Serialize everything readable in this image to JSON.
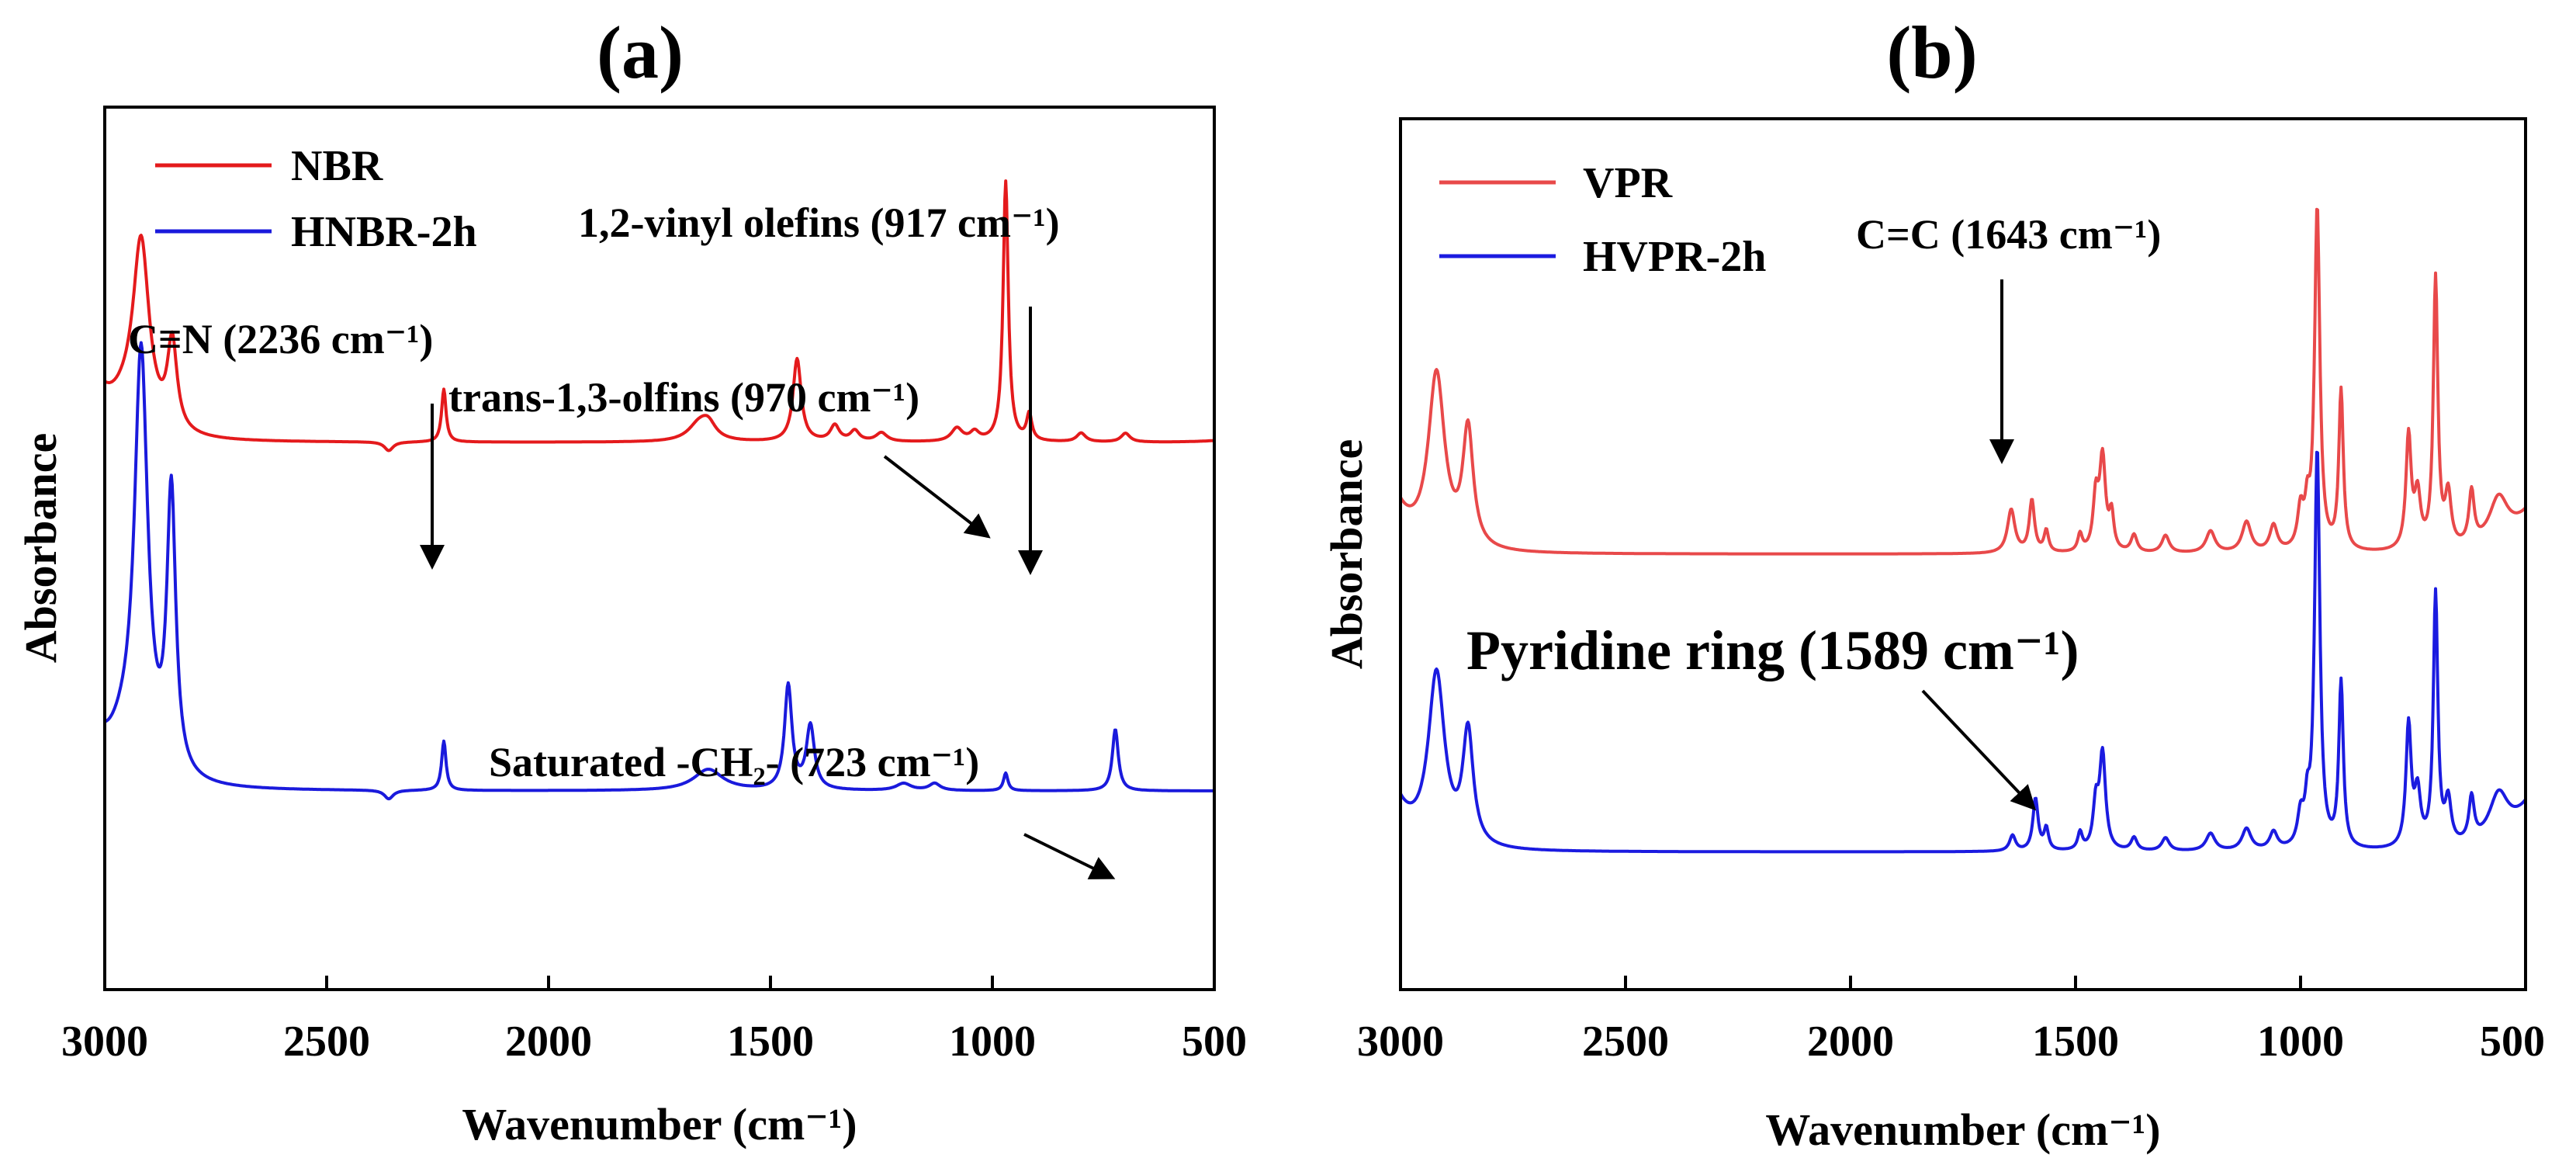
{
  "chart_data": [
    {
      "panel": "(a)",
      "type": "line",
      "title": "(a)",
      "xlabel": "Wavenumber (cm⁻¹)",
      "ylabel": "Absorbance",
      "xlim": [
        3000,
        500
      ],
      "ylim": [
        0,
        1
      ],
      "xticks": [
        "3000",
        "2500",
        "2000",
        "1500",
        "1000",
        "500"
      ],
      "legend_position": "top-left",
      "series": [
        {
          "name": "NBR",
          "color": "#e41a1c",
          "baseline": 0.62,
          "lead": 0.66,
          "tail": 0.622,
          "peaks": [
            [
              2950,
              0.03,
              50
            ],
            [
              2918,
              0.205,
              22
            ],
            [
              2848,
              0.1,
              13
            ],
            [
              2360,
              -0.01,
              12
            ],
            [
              2236,
              0.06,
              6
            ],
            [
              1660,
              0.02,
              30
            ],
            [
              1640,
              0.015,
              20
            ],
            [
              1440,
              0.094,
              11
            ],
            [
              1355,
              0.018,
              12
            ],
            [
              1310,
              0.012,
              12
            ],
            [
              1250,
              0.01,
              15
            ],
            [
              1080,
              0.015,
              15
            ],
            [
              1040,
              0.01,
              12
            ],
            [
              970,
              0.295,
              7
            ],
            [
              917,
              0.03,
              7
            ],
            [
              800,
              0.01,
              12
            ],
            [
              700,
              0.01,
              12
            ]
          ]
        },
        {
          "name": "HNBR-2h",
          "color": "#1a1adc",
          "baseline": 0.225,
          "lead": 0.26,
          "tail": 0.225,
          "peaks": [
            [
              2955,
              0.04,
              45
            ],
            [
              2918,
              0.47,
              18
            ],
            [
              2850,
              0.32,
              12
            ],
            [
              2360,
              -0.01,
              12
            ],
            [
              2236,
              0.056,
              6
            ],
            [
              1640,
              0.024,
              40
            ],
            [
              1460,
              0.118,
              10
            ],
            [
              1410,
              0.072,
              11
            ],
            [
              1200,
              0.008,
              20
            ],
            [
              1130,
              0.008,
              15
            ],
            [
              970,
              0.02,
              6
            ],
            [
              723,
              0.07,
              8
            ]
          ]
        }
      ],
      "annotations": [
        {
          "text": "C≡N (2236 cm⁻¹)",
          "target": 2236
        },
        {
          "text": "trans-1,3-olfins (970 cm⁻¹)",
          "target": 970
        },
        {
          "text": "1,2-vinyl olefins (917 cm⁻¹)",
          "target": 917
        },
        {
          "text": "Saturated -CH₂- (723 cm⁻¹)",
          "target": 723
        }
      ]
    },
    {
      "panel": "(b)",
      "type": "line",
      "title": "(b)",
      "xlabel": "Wavenumber (cm⁻¹)",
      "ylabel": "Absorbance",
      "xlim": [
        3000,
        500
      ],
      "ylim": [
        0,
        1
      ],
      "xticks": [
        "3000",
        "2500",
        "2000",
        "1500",
        "1000",
        "500"
      ],
      "legend_position": "top-left",
      "series": [
        {
          "name": "VPR",
          "color": "#e8494a",
          "baseline": 0.5,
          "lead": 0.55,
          "tail": 0.545,
          "peaks": [
            [
              2920,
              0.2,
              22
            ],
            [
              2850,
              0.135,
              14
            ],
            [
              1643,
              0.05,
              10
            ],
            [
              1597,
              0.06,
              7
            ],
            [
              1565,
              0.025,
              6
            ],
            [
              1490,
              0.02,
              6
            ],
            [
              1455,
              0.06,
              7
            ],
            [
              1440,
              0.106,
              8
            ],
            [
              1420,
              0.04,
              6
            ],
            [
              1370,
              0.02,
              8
            ],
            [
              1300,
              0.02,
              10
            ],
            [
              1200,
              0.025,
              12
            ],
            [
              1120,
              0.035,
              12
            ],
            [
              1060,
              0.03,
              10
            ],
            [
              1000,
              0.045,
              8
            ],
            [
              985,
              0.04,
              6
            ],
            [
              963,
              0.395,
              7
            ],
            [
              910,
              0.183,
              6
            ],
            [
              760,
              0.13,
              7
            ],
            [
              740,
              0.06,
              8
            ],
            [
              700,
              0.31,
              6
            ],
            [
              672,
              0.06,
              8
            ],
            [
              620,
              0.06,
              7
            ],
            [
              560,
              0.05,
              25
            ]
          ]
        },
        {
          "name": "HVPR-2h",
          "color": "#1b1be0",
          "baseline": 0.158,
          "lead": 0.21,
          "tail": 0.21,
          "peaks": [
            [
              2920,
              0.198,
              22
            ],
            [
              2850,
              0.13,
              14
            ],
            [
              1640,
              0.018,
              8
            ],
            [
              1589,
              0.06,
              7
            ],
            [
              1565,
              0.025,
              6
            ],
            [
              1490,
              0.02,
              6
            ],
            [
              1455,
              0.05,
              7
            ],
            [
              1440,
              0.11,
              8
            ],
            [
              1370,
              0.015,
              8
            ],
            [
              1300,
              0.015,
              10
            ],
            [
              1200,
              0.02,
              12
            ],
            [
              1120,
              0.025,
              12
            ],
            [
              1060,
              0.02,
              10
            ],
            [
              1000,
              0.035,
              8
            ],
            [
              985,
              0.04,
              6
            ],
            [
              963,
              0.46,
              7
            ],
            [
              910,
              0.19,
              6
            ],
            [
              760,
              0.14,
              7
            ],
            [
              740,
              0.06,
              8
            ],
            [
              700,
              0.29,
              6
            ],
            [
              672,
              0.05,
              8
            ],
            [
              620,
              0.05,
              7
            ],
            [
              560,
              0.05,
              25
            ]
          ]
        }
      ],
      "annotations": [
        {
          "text": "C=C (1643 cm⁻¹)",
          "target": 1643
        },
        {
          "text": "Pyridine ring (1589 cm⁻¹)",
          "target": 1589
        }
      ]
    }
  ]
}
